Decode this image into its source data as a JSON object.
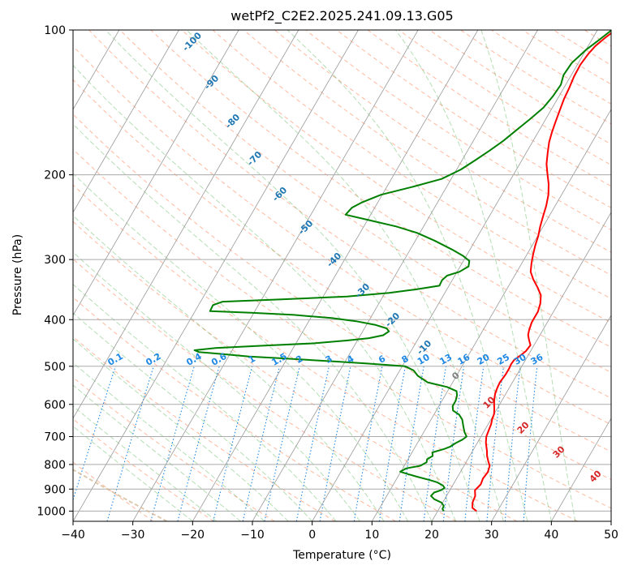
{
  "chart_data": {
    "type": "line",
    "title": "wetPf2_C2E2.2025.241.09.13.G05",
    "xlabel": "Temperature (°C)",
    "ylabel": "Pressure (hPa)",
    "xlim": [
      -40,
      50
    ],
    "ylim": [
      1050,
      100
    ],
    "y_scale": "log",
    "x_ticks": [
      -40,
      -30,
      -20,
      -10,
      0,
      10,
      20,
      30,
      40,
      50
    ],
    "y_ticks": [
      100,
      200,
      300,
      400,
      500,
      600,
      700,
      800,
      900,
      1000
    ],
    "grid": true,
    "series": [
      {
        "role": "temperature",
        "color": "#ff0000",
        "points": [
          [
            26.5,
            1000
          ],
          [
            25.5,
            985
          ],
          [
            25.0,
            960
          ],
          [
            24.8,
            930
          ],
          [
            24.2,
            905
          ],
          [
            24.6,
            880
          ],
          [
            24.4,
            855
          ],
          [
            24.6,
            830
          ],
          [
            24.3,
            805
          ],
          [
            23.7,
            790
          ],
          [
            22.9,
            768
          ],
          [
            22.4,
            750
          ],
          [
            21.9,
            735
          ],
          [
            21.4,
            720
          ],
          [
            20.9,
            700
          ],
          [
            20.7,
            680
          ],
          [
            20.5,
            660
          ],
          [
            20.2,
            645
          ],
          [
            20.0,
            628
          ],
          [
            19.5,
            612
          ],
          [
            19.0,
            598
          ],
          [
            18.6,
            585
          ],
          [
            18.2,
            570
          ],
          [
            18.0,
            555
          ],
          [
            17.9,
            540
          ],
          [
            18.1,
            520
          ],
          [
            18.1,
            505
          ],
          [
            18.0,
            495
          ],
          [
            18.1,
            485
          ],
          [
            18.7,
            475
          ],
          [
            19.2,
            465
          ],
          [
            19.4,
            452
          ],
          [
            18.6,
            440
          ],
          [
            18.0,
            430
          ],
          [
            17.7,
            420
          ],
          [
            17.4,
            405
          ],
          [
            17.4,
            385
          ],
          [
            17.0,
            370
          ],
          [
            16.3,
            356
          ],
          [
            15.0,
            343
          ],
          [
            13.5,
            330
          ],
          [
            12.3,
            318
          ],
          [
            11.6,
            305
          ],
          [
            11.0,
            292
          ],
          [
            10.5,
            280
          ],
          [
            10.1,
            268
          ],
          [
            9.5,
            256
          ],
          [
            9.0,
            244
          ],
          [
            8.5,
            232
          ],
          [
            7.8,
            220
          ],
          [
            6.8,
            209
          ],
          [
            5.6,
            199
          ],
          [
            4.5,
            190
          ],
          [
            3.6,
            180
          ],
          [
            2.8,
            171
          ],
          [
            2.3,
            163
          ],
          [
            1.9,
            155
          ],
          [
            1.5,
            147
          ],
          [
            1.1,
            139
          ],
          [
            0.9,
            132
          ],
          [
            0.6,
            125
          ],
          [
            0.5,
            118
          ],
          [
            0.8,
            112
          ],
          [
            1.2,
            108
          ],
          [
            2.0,
            104
          ],
          [
            3.0,
            100
          ]
        ]
      },
      {
        "role": "dewpoint",
        "color": "#008000",
        "points": [
          [
            21.0,
            1000
          ],
          [
            20.6,
            990
          ],
          [
            20.5,
            975
          ],
          [
            19.8,
            960
          ],
          [
            18.3,
            945
          ],
          [
            17.4,
            930
          ],
          [
            17.6,
            915
          ],
          [
            18.5,
            905
          ],
          [
            18.9,
            895
          ],
          [
            18.4,
            885
          ],
          [
            17.2,
            872
          ],
          [
            15.7,
            862
          ],
          [
            13.5,
            850
          ],
          [
            11.5,
            838
          ],
          [
            9.9,
            828
          ],
          [
            10.6,
            815
          ],
          [
            12.7,
            805
          ],
          [
            13.4,
            792
          ],
          [
            13.2,
            780
          ],
          [
            13.8,
            768
          ],
          [
            13.4,
            755
          ],
          [
            15.0,
            743
          ],
          [
            15.8,
            735
          ],
          [
            16.4,
            722
          ],
          [
            17.2,
            710
          ],
          [
            17.6,
            700
          ],
          [
            16.8,
            685
          ],
          [
            16.0,
            665
          ],
          [
            15.2,
            645
          ],
          [
            14.2,
            630
          ],
          [
            12.8,
            618
          ],
          [
            12.3,
            605
          ],
          [
            12.3,
            590
          ],
          [
            12.0,
            575
          ],
          [
            11.5,
            563
          ],
          [
            9.5,
            552
          ],
          [
            5.8,
            540
          ],
          [
            3.5,
            523
          ],
          [
            2.3,
            510
          ],
          [
            0.5,
            500
          ],
          [
            -6.4,
            493
          ],
          [
            -11.1,
            489
          ],
          [
            -16.3,
            485
          ],
          [
            -21.4,
            481
          ],
          [
            -26.6,
            477
          ],
          [
            -31.0,
            472
          ],
          [
            -35.4,
            467
          ],
          [
            -36.3,
            463
          ],
          [
            -33.0,
            458
          ],
          [
            -25.0,
            453
          ],
          [
            -17.1,
            448
          ],
          [
            -11.8,
            442
          ],
          [
            -8.3,
            437
          ],
          [
            -6.2,
            431
          ],
          [
            -5.6,
            423
          ],
          [
            -6.3,
            417
          ],
          [
            -8.6,
            410
          ],
          [
            -12.1,
            403
          ],
          [
            -16.5,
            397
          ],
          [
            -23.1,
            391
          ],
          [
            -30.5,
            387
          ],
          [
            -37.5,
            384
          ],
          [
            -37.6,
            373
          ],
          [
            -36.3,
            367
          ],
          [
            -26.7,
            363
          ],
          [
            -16.0,
            358
          ],
          [
            -9.3,
            352
          ],
          [
            -5.1,
            346
          ],
          [
            -1.6,
            340
          ],
          [
            -1.7,
            331
          ],
          [
            -1.3,
            324
          ],
          [
            0.4,
            318
          ],
          [
            1.4,
            310
          ],
          [
            1.0,
            302
          ],
          [
            -0.5,
            295
          ],
          [
            -3.0,
            286
          ],
          [
            -6.8,
            274
          ],
          [
            -10.5,
            264
          ],
          [
            -14.6,
            256
          ],
          [
            -20.0,
            248
          ],
          [
            -24.2,
            242
          ],
          [
            -23.8,
            234
          ],
          [
            -22.6,
            228
          ],
          [
            -20.2,
            220
          ],
          [
            -15.8,
            212
          ],
          [
            -11.6,
            204
          ],
          [
            -9.3,
            195
          ],
          [
            -7.7,
            186
          ],
          [
            -6.3,
            178
          ],
          [
            -5.0,
            170
          ],
          [
            -3.9,
            162
          ],
          [
            -2.6,
            153
          ],
          [
            -1.5,
            145
          ],
          [
            -1.0,
            137
          ],
          [
            -0.8,
            130
          ],
          [
            -1.3,
            124
          ],
          [
            -1.1,
            117
          ],
          [
            0.0,
            110
          ],
          [
            1.2,
            105
          ],
          [
            2.4,
            100
          ]
        ]
      }
    ],
    "dry_adiabat_labels": [
      "-100",
      "-90",
      "-80",
      "-70",
      "-60",
      "-50",
      "-40",
      "-30",
      "-20",
      "-10",
      "0",
      "10",
      "20",
      "30",
      "40"
    ],
    "mixing_ratio_labels": [
      "0.1",
      "0.2",
      "0.4",
      "0.6",
      "1",
      "1.5",
      "2",
      "3",
      "4",
      "6",
      "8",
      "10",
      "13",
      "16",
      "20",
      "25",
      "30",
      "36"
    ],
    "colors": {
      "isotherm": "#999999",
      "isobar": "#aaaaaa",
      "dry_adiabat": "#ff7f50",
      "moist_adiabat": "#2ca02c",
      "mixing_ratio": "#1e88e5",
      "lcl_adiabat": "#d2b48c"
    }
  }
}
